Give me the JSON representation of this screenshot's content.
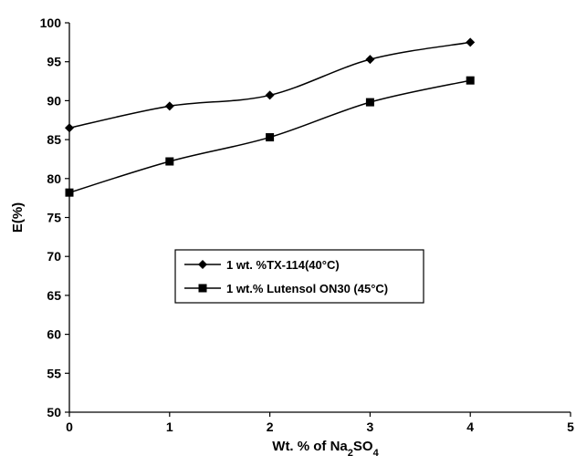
{
  "chart_data": {
    "type": "line",
    "x": [
      0,
      1,
      2,
      3,
      4
    ],
    "series": [
      {
        "name": "1 wt. %TX-114(40°C)",
        "marker": "diamond",
        "values": [
          86.5,
          89.3,
          90.7,
          95.3,
          97.5
        ]
      },
      {
        "name": "1 wt.% Lutensol ON30 (45°C)",
        "marker": "square",
        "values": [
          78.2,
          82.2,
          85.3,
          89.8,
          92.6
        ]
      }
    ],
    "xlabel": {
      "prefix": "Wt. % of Na",
      "sub1": "2",
      "mid": "SO",
      "sub2": "4"
    },
    "ylabel": "E(%)",
    "xlim": [
      0,
      5
    ],
    "ylim": [
      50,
      100
    ],
    "xticks": [
      0,
      1,
      2,
      3,
      4,
      5
    ],
    "yticks": [
      50,
      55,
      60,
      65,
      70,
      75,
      80,
      85,
      90,
      95,
      100
    ],
    "grid": false,
    "legend_position": "center"
  }
}
